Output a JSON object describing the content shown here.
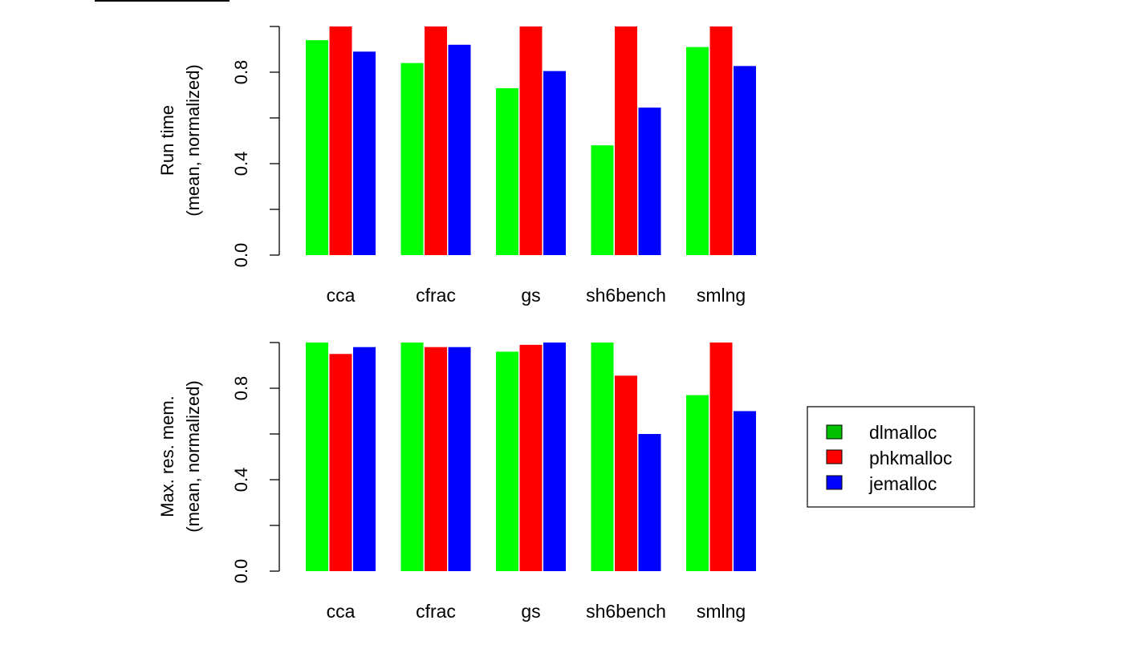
{
  "colors": {
    "dlmalloc_bar": "#00ff00",
    "phkmalloc_bar": "#ff0000",
    "jemalloc_bar": "#0000ff",
    "legend_dlmalloc": "#00c000",
    "legend_phkmalloc": "#ff0000",
    "legend_jemalloc": "#0000ff"
  },
  "legend": {
    "placement": "right",
    "items": [
      {
        "label": "dlmalloc",
        "color": "#00c000"
      },
      {
        "label": "phkmalloc",
        "color": "#ff0000"
      },
      {
        "label": "jemalloc",
        "color": "#0000ff"
      }
    ]
  },
  "chart_data": [
    {
      "type": "bar",
      "ylabel_line1": "Run time",
      "ylabel_line2": "(mean, normalized)",
      "ylim": [
        0,
        1
      ],
      "yticks": [
        "0.0",
        "0.4",
        "0.8"
      ],
      "categories": [
        "cca",
        "cfrac",
        "gs",
        "sh6bench",
        "smlng"
      ],
      "series": [
        {
          "name": "dlmalloc",
          "values": [
            0.94,
            0.84,
            0.73,
            0.48,
            0.91
          ]
        },
        {
          "name": "phkmalloc",
          "values": [
            1.0,
            1.0,
            1.0,
            1.0,
            1.0
          ]
        },
        {
          "name": "jemalloc",
          "values": [
            0.89,
            0.92,
            0.805,
            0.645,
            0.827
          ]
        }
      ]
    },
    {
      "type": "bar",
      "ylabel_line1": "Max. res. mem.",
      "ylabel_line2": "(mean, normalized)",
      "ylim": [
        0,
        1
      ],
      "yticks": [
        "0.0",
        "0.4",
        "0.8"
      ],
      "categories": [
        "cca",
        "cfrac",
        "gs",
        "sh6bench",
        "smlng"
      ],
      "series": [
        {
          "name": "dlmalloc",
          "values": [
            1.0,
            1.0,
            0.96,
            1.0,
            0.77
          ]
        },
        {
          "name": "phkmalloc",
          "values": [
            0.95,
            0.98,
            0.99,
            0.855,
            1.0
          ]
        },
        {
          "name": "jemalloc",
          "values": [
            0.98,
            0.98,
            1.0,
            0.6,
            0.7
          ]
        }
      ]
    }
  ]
}
